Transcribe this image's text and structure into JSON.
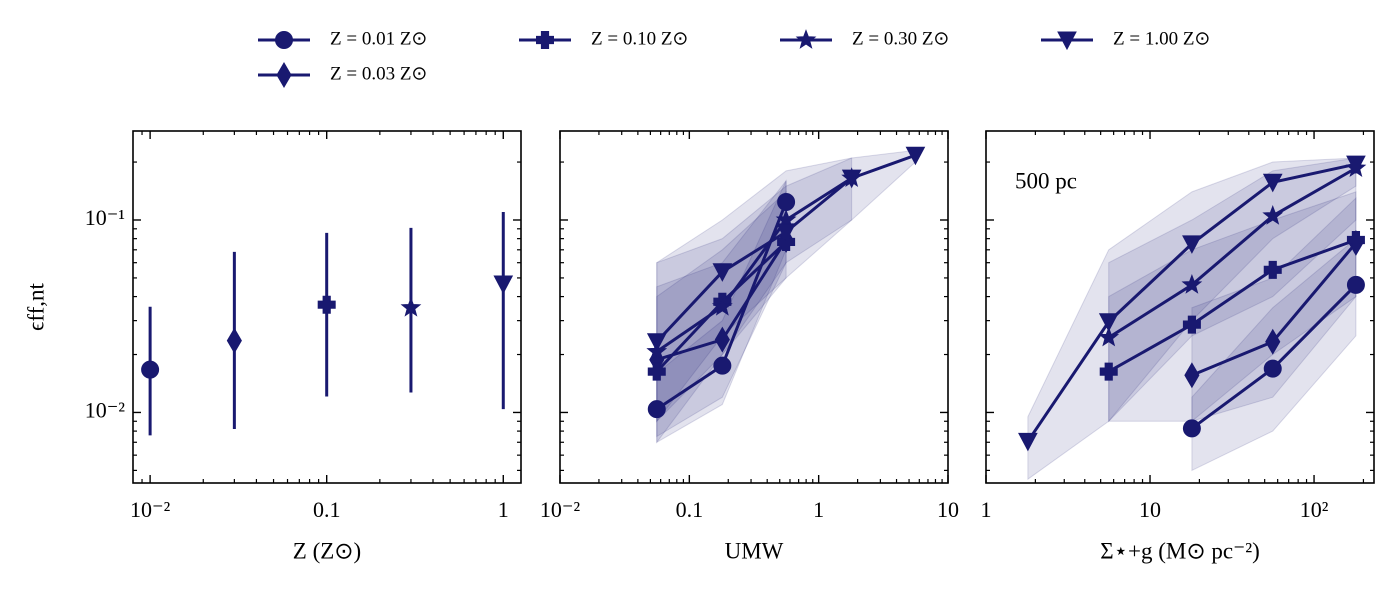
{
  "chart_data": [
    {
      "type": "errorbar",
      "y_label": "ϵff,nt",
      "x_label": "Z (Z⊙)",
      "color": "#191970",
      "x": [
        0.01,
        0.03,
        0.1,
        0.3,
        1
      ],
      "markers": [
        "circle",
        "diamond",
        "plus",
        "star",
        "triangle_down"
      ],
      "values": [
        0.0167,
        0.0236,
        0.0363,
        0.035,
        0.0465
      ],
      "yerr_low": [
        0.0076,
        0.0082,
        0.0121,
        0.0127,
        0.0104
      ],
      "yerr_high": [
        0.0354,
        0.0683,
        0.0857,
        0.091,
        0.11
      ],
      "xscale": "log",
      "yscale": "log",
      "xlim": [
        0.008,
        1.26
      ],
      "xticks": [
        {
          "value": 0.01,
          "label": "10⁻²"
        },
        0.1,
        1
      ],
      "ylim": [
        0.0043,
        0.29
      ],
      "yticks": [
        {
          "value": 0.01,
          "label": "10⁻²"
        },
        {
          "value": 0.1,
          "label": "10⁻¹"
        }
      ]
    },
    {
      "type": "line_band",
      "x_label": "UMW",
      "x": [
        0.056,
        0.18,
        0.56,
        1.8,
        5.6
      ],
      "series": [
        {
          "name": "Z = 0.01 Z⊙",
          "color": "#191970",
          "marker": "circle",
          "values": [
            0.0104,
            0.0175,
            0.124,
            null,
            null
          ],
          "lower": [
            0.007,
            0.011,
            0.07,
            null,
            null
          ],
          "upper": [
            0.016,
            0.03,
            0.16,
            null,
            null
          ]
        },
        {
          "name": "Z = 0.03 Z⊙",
          "color": "#191970",
          "marker": "diamond",
          "values": [
            0.0188,
            0.0239,
            0.0787,
            null,
            null
          ],
          "lower": [
            0.0075,
            0.012,
            0.06,
            null,
            null
          ],
          "upper": [
            0.045,
            0.06,
            0.16,
            null,
            null
          ]
        },
        {
          "name": "Z = 0.10 Z⊙",
          "color": "#191970",
          "marker": "plus",
          "values": [
            0.0163,
            0.0376,
            0.0769,
            null,
            null
          ],
          "lower": [
            0.007,
            0.02,
            0.05,
            null,
            null
          ],
          "upper": [
            0.04,
            0.07,
            0.14,
            null,
            null
          ]
        },
        {
          "name": "Z = 0.30 Z⊙",
          "color": "#191970",
          "marker": "star",
          "values": [
            0.0207,
            0.0354,
            0.1,
            0.165,
            null
          ],
          "lower": [
            0.009,
            0.02,
            0.06,
            0.1,
            null
          ],
          "upper": [
            0.06,
            0.1,
            0.18,
            0.21,
            null
          ]
        },
        {
          "name": "Z = 1.00 Z⊙",
          "color": "#191970",
          "marker": "triangle_down",
          "values": [
            0.0233,
            0.0538,
            0.0867,
            0.165,
            0.217
          ],
          "lower": [
            0.009,
            0.025,
            0.05,
            0.1,
            0.2
          ],
          "upper": [
            0.06,
            0.08,
            0.15,
            0.21,
            0.23
          ]
        }
      ],
      "xscale": "log",
      "yscale": "log",
      "xlim": [
        0.01,
        10
      ],
      "xticks": [
        {
          "value": 0.01,
          "label": "10⁻²"
        },
        0.1,
        1,
        10
      ],
      "ylim": [
        0.0043,
        0.29
      ],
      "yticks": [
        0.01,
        0.1
      ]
    },
    {
      "type": "line_band",
      "x_label": "Σ⋆+g (M⊙ pc⁻²)",
      "annotation": "500 pc",
      "x": [
        1.8,
        5.6,
        18,
        56,
        180
      ],
      "series": [
        {
          "name": "Z = 0.01 Z⊙",
          "color": "#191970",
          "marker": "circle",
          "values": [
            null,
            null,
            0.00826,
            0.0169,
            0.046
          ],
          "lower": [
            null,
            null,
            0.005,
            0.008,
            0.025
          ],
          "upper": [
            null,
            null,
            0.012,
            0.035,
            0.08
          ]
        },
        {
          "name": "Z = 0.03 Z⊙",
          "color": "#191970",
          "marker": "diamond",
          "values": [
            null,
            null,
            0.0156,
            0.0233,
            0.076
          ],
          "lower": [
            null,
            null,
            0.009,
            0.012,
            0.04
          ],
          "upper": [
            null,
            null,
            0.035,
            0.05,
            0.13
          ]
        },
        {
          "name": "Z = 0.10 Z⊙",
          "color": "#191970",
          "marker": "plus",
          "values": [
            null,
            0.0163,
            0.0286,
            0.0551,
            0.0787
          ],
          "lower": [
            null,
            0.009,
            0.009,
            0.02,
            0.04
          ],
          "upper": [
            null,
            0.04,
            0.07,
            0.1,
            0.14
          ]
        },
        {
          "name": "Z = 0.30 Z⊙",
          "color": "#191970",
          "marker": "star",
          "values": [
            null,
            0.0245,
            0.046,
            0.105,
            0.186
          ],
          "lower": [
            null,
            0.009,
            0.025,
            0.04,
            0.1
          ],
          "upper": [
            null,
            0.06,
            0.1,
            0.18,
            0.21
          ]
        },
        {
          "name": "Z = 1.00 Z⊙",
          "color": "#191970",
          "marker": "triangle_down",
          "values": [
            0.00708,
            0.0296,
            0.0752,
            0.157,
            0.195
          ],
          "lower": [
            0.0045,
            0.009,
            0.03,
            0.08,
            0.15
          ],
          "upper": [
            0.0095,
            0.07,
            0.14,
            0.2,
            0.21
          ]
        }
      ],
      "xscale": "log",
      "yscale": "log",
      "xlim": [
        1,
        232
      ],
      "xticks": [
        1,
        10,
        {
          "value": 100,
          "label": "10²"
        }
      ],
      "ylim": [
        0.0043,
        0.29
      ],
      "yticks": [
        0.01,
        0.1
      ]
    }
  ]
}
